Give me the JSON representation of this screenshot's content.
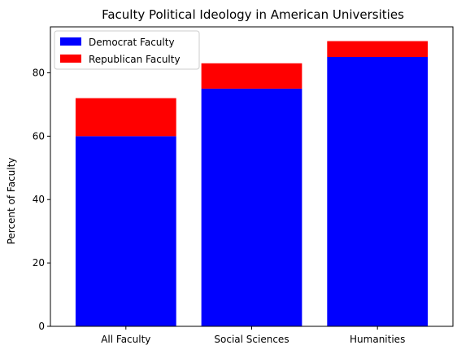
{
  "chart_data": {
    "type": "bar",
    "stacked": true,
    "title": "Faculty Political Ideology in American Universities",
    "xlabel": "",
    "ylabel": "Percent of Faculty",
    "categories": [
      "All Faculty",
      "Social Sciences",
      "Humanities"
    ],
    "series": [
      {
        "name": "Democrat Faculty",
        "values": [
          60,
          75,
          85
        ],
        "color": "#0000ff"
      },
      {
        "name": "Republican Faculty",
        "values": [
          12,
          8,
          5
        ],
        "color": "#ff0000"
      }
    ],
    "ylim": [
      0,
      94.5
    ],
    "yticks": [
      0,
      20,
      40,
      60,
      80
    ],
    "grid": false,
    "legend_position": "top-left"
  }
}
